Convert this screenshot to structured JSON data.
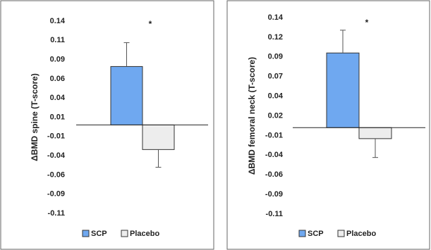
{
  "chart_data": [
    {
      "type": "bar",
      "y_label": "ΔBMD spine (T-score)",
      "annotations": [
        "*"
      ],
      "ylim": [
        -0.115,
        0.135
      ],
      "yticks": [
        {
          "value": 0.135,
          "label": "0.14"
        },
        {
          "value": 0.11,
          "label": "0.11"
        },
        {
          "value": 0.085,
          "label": "0.09"
        },
        {
          "value": 0.06,
          "label": "0.06"
        },
        {
          "value": 0.035,
          "label": "0.04"
        },
        {
          "value": 0.01,
          "label": "0.01"
        },
        {
          "value": -0.015,
          "label": "-0.01"
        },
        {
          "value": -0.04,
          "label": "-0.04"
        },
        {
          "value": -0.065,
          "label": "-0.06"
        },
        {
          "value": -0.09,
          "label": "-0.09"
        },
        {
          "value": -0.115,
          "label": "-0.11"
        }
      ],
      "series": [
        {
          "name": "SCP",
          "color": "#6fa8f0",
          "values": [
            0.076
          ],
          "errors": [
            0.031
          ]
        },
        {
          "name": "Placebo",
          "color": "#ededed",
          "values": [
            -0.032
          ],
          "errors": [
            0.023
          ]
        }
      ]
    },
    {
      "type": "bar",
      "y_label": "ΔBMD femoral neck (T-score)",
      "annotations": [
        "*"
      ],
      "ylim": [
        -0.11,
        0.14
      ],
      "yticks": [
        {
          "value": 0.14,
          "label": "0.14"
        },
        {
          "value": 0.115,
          "label": "0.12"
        },
        {
          "value": 0.09,
          "label": "0.09"
        },
        {
          "value": 0.065,
          "label": "0.07"
        },
        {
          "value": 0.04,
          "label": "0.04"
        },
        {
          "value": 0.015,
          "label": "0.02"
        },
        {
          "value": -0.01,
          "label": "-0.01"
        },
        {
          "value": -0.035,
          "label": "-0.04"
        },
        {
          "value": -0.06,
          "label": "-0.06"
        },
        {
          "value": -0.085,
          "label": "-0.09"
        },
        {
          "value": -0.11,
          "label": "-0.11"
        }
      ],
      "series": [
        {
          "name": "SCP",
          "color": "#6fa8f0",
          "values": [
            0.095
          ],
          "errors": [
            0.029
          ]
        },
        {
          "name": "Placebo",
          "color": "#ededed",
          "values": [
            -0.014
          ],
          "errors": [
            0.024
          ]
        }
      ]
    }
  ]
}
